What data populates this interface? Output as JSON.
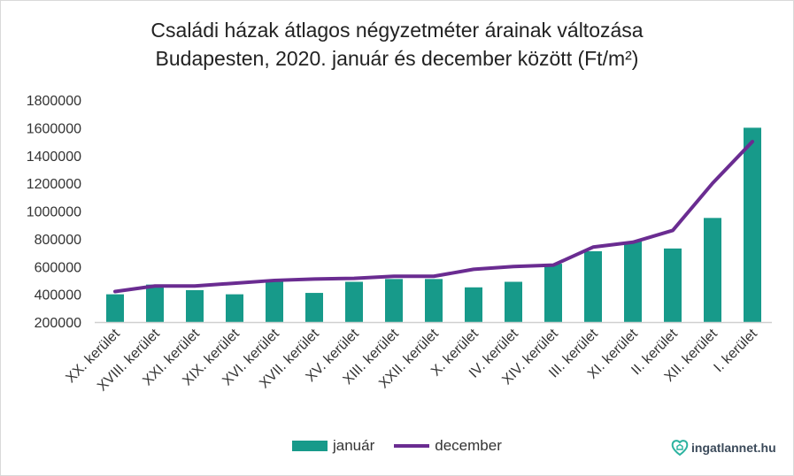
{
  "chart_data": {
    "type": "bar+line",
    "title": "Családi házak átlagos négyzetméter árainak változása Budapesten, 2020. január és december között (Ft/m²)",
    "title_lines": [
      "Családi házak átlagos négyzetméter árainak változása",
      "Budapesten, 2020. január és december között (Ft/m²)"
    ],
    "categories": [
      "XX. kerület",
      "XVIII. kerület",
      "XXI. kerület",
      "XIX. kerület",
      "XVI. kerület",
      "XVII. kerület",
      "XV. kerület",
      "XIII. kerület",
      "XXII. kerület",
      "X. kerület",
      "IV. kerület",
      "XIV. kerület",
      "III. kerület",
      "XI. kerület",
      "II. kerület",
      "XII. kerület",
      "I. kerület"
    ],
    "series": [
      {
        "name": "január",
        "type": "bar",
        "color": "#179a8a",
        "values": [
          400000,
          470000,
          430000,
          400000,
          490000,
          410000,
          490000,
          510000,
          510000,
          450000,
          490000,
          620000,
          710000,
          780000,
          730000,
          950000,
          1600000
        ]
      },
      {
        "name": "december",
        "type": "line",
        "color": "#6a2c91",
        "values": [
          420000,
          460000,
          460000,
          480000,
          500000,
          510000,
          515000,
          530000,
          530000,
          580000,
          600000,
          610000,
          740000,
          775000,
          860000,
          1200000,
          1500000
        ]
      }
    ],
    "ylim": [
      200000,
      1800000
    ],
    "yticks": [
      "200000",
      "400000",
      "600000",
      "800000",
      "1000000",
      "1200000",
      "1400000",
      "1600000",
      "1800000"
    ],
    "grid": false,
    "legend": "bottom"
  },
  "logo": {
    "text": "ingatlannet.hu",
    "accent": "#2bb3a0"
  }
}
